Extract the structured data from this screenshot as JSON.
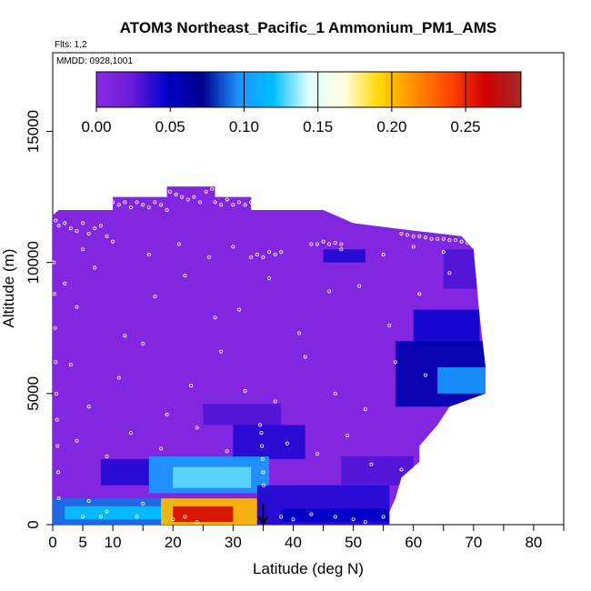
{
  "chart_data": {
    "type": "heatmap",
    "title": "ATOM3 Northeast_Pacific_1 Ammonium_PM1_AMS",
    "flights_label": "Flts: 1,2",
    "date_label": "MMDD: 0928,1001",
    "xlabel": "Latitude (deg N)",
    "ylabel": "Altitude (m)",
    "xlim": [
      0,
      85
    ],
    "ylim": [
      0,
      18000
    ],
    "x_ticks": [
      0,
      5,
      10,
      20,
      30,
      40,
      50,
      60,
      70,
      80
    ],
    "y_ticks": [
      0,
      5000,
      10000,
      15000
    ],
    "colorbar": {
      "min": 0.0,
      "max": 0.2875,
      "ticks": [
        0.0,
        0.05,
        0.1,
        0.15,
        0.2,
        0.25
      ],
      "tick_labels": [
        "0.00",
        "0.05",
        "0.10",
        "0.15",
        "0.20",
        "0.25"
      ],
      "colors": [
        "#8a2be2",
        "#6a1ad8",
        "#0000cd",
        "#00008b",
        "#1e90ff",
        "#00bfff",
        "#e0ffff",
        "#ffffe0",
        "#ffd700",
        "#ff8c00",
        "#ff4500",
        "#d00000",
        "#a52a2a"
      ]
    },
    "envelope": [
      [
        0,
        8000
      ],
      [
        0,
        11800
      ],
      [
        1,
        12000
      ],
      [
        10,
        12000
      ],
      [
        10,
        12500
      ],
      [
        19,
        12500
      ],
      [
        19,
        12900
      ],
      [
        27,
        12900
      ],
      [
        27,
        12500
      ],
      [
        33,
        12500
      ],
      [
        33,
        12000
      ],
      [
        45,
        12000
      ],
      [
        50,
        11500
      ],
      [
        57,
        11300
      ],
      [
        68,
        11000
      ],
      [
        70,
        10500
      ],
      [
        71,
        8000
      ],
      [
        72,
        6000
      ],
      [
        72,
        5000
      ],
      [
        66,
        4500
      ],
      [
        64,
        3800
      ],
      [
        61,
        3000
      ],
      [
        61,
        2400
      ],
      [
        58,
        1800
      ],
      [
        57,
        1000
      ],
      [
        56,
        500
      ],
      [
        56,
        0
      ],
      [
        0,
        0
      ]
    ],
    "background_value": 0.006,
    "features": [
      {
        "x": [
          65,
          71
        ],
        "y": [
          9000,
          10500
        ],
        "value": 0.03
      },
      {
        "x": [
          60,
          71
        ],
        "y": [
          6800,
          8200
        ],
        "value": 0.045
      },
      {
        "x": [
          57,
          72
        ],
        "y": [
          4500,
          7000
        ],
        "value": 0.06
      },
      {
        "x": [
          64,
          72
        ],
        "y": [
          5000,
          6000
        ],
        "value": 0.1
      },
      {
        "x": [
          45,
          52
        ],
        "y": [
          10000,
          10500
        ],
        "value": 0.04
      },
      {
        "x": [
          25,
          38
        ],
        "y": [
          3800,
          4600
        ],
        "value": 0.03
      },
      {
        "x": [
          30,
          42
        ],
        "y": [
          2500,
          3800
        ],
        "value": 0.04
      },
      {
        "x": [
          8,
          16
        ],
        "y": [
          1500,
          2500
        ],
        "value": 0.04
      },
      {
        "x": [
          16,
          36
        ],
        "y": [
          1200,
          2600
        ],
        "value": 0.1
      },
      {
        "x": [
          20,
          33
        ],
        "y": [
          1400,
          2200
        ],
        "value": 0.13
      },
      {
        "x": [
          0,
          20
        ],
        "y": [
          0,
          1000
        ],
        "value": 0.09
      },
      {
        "x": [
          2,
          18
        ],
        "y": [
          200,
          700
        ],
        "value": 0.12
      },
      {
        "x": [
          18,
          34
        ],
        "y": [
          0,
          1000
        ],
        "value": 0.2
      },
      {
        "x": [
          20,
          30
        ],
        "y": [
          100,
          700
        ],
        "value": 0.26
      },
      {
        "x": [
          34,
          56
        ],
        "y": [
          0,
          1500
        ],
        "value": 0.04
      },
      {
        "x": [
          38,
          56
        ],
        "y": [
          100,
          600
        ],
        "value": 0.05
      },
      {
        "x": [
          48,
          60
        ],
        "y": [
          1500,
          2600
        ],
        "value": 0.03
      }
    ],
    "flight_tracks": [
      {
        "x": [
          0.5,
          1,
          2,
          3,
          4,
          5,
          6,
          7,
          8,
          9
        ],
        "y": [
          11600,
          11400,
          11500,
          11300,
          11200,
          11500,
          11100,
          11300,
          11400,
          11000
        ]
      },
      {
        "x": [
          10,
          11,
          12,
          13,
          14,
          15,
          16,
          17,
          18,
          19
        ],
        "y": [
          12300,
          12200,
          12300,
          12100,
          12300,
          12200,
          12100,
          12300,
          12200,
          12000
        ]
      },
      {
        "x": [
          19.5,
          20.5,
          21.5,
          22.5,
          23.5,
          24.5,
          25.5,
          26.5
        ],
        "y": [
          12700,
          12600,
          12500,
          12400,
          12500,
          12300,
          12700,
          12800
        ]
      },
      {
        "x": [
          27,
          28,
          29,
          30,
          31,
          32,
          33
        ],
        "y": [
          12300,
          12200,
          12400,
          12200,
          12300,
          12200,
          12300
        ]
      },
      {
        "x": [
          33,
          34,
          35,
          36,
          37
        ],
        "y": [
          10200,
          10300,
          10200,
          10400,
          10300
        ]
      },
      {
        "x": [
          44,
          45,
          46,
          47,
          48
        ],
        "y": [
          10700,
          10800,
          10700,
          10750,
          10700
        ]
      },
      {
        "x": [
          58,
          59,
          60,
          61,
          62,
          63,
          64,
          65,
          66,
          67,
          68,
          69,
          70
        ],
        "y": [
          11100,
          11050,
          11000,
          11000,
          10950,
          10900,
          10900,
          10900,
          10850,
          10850,
          10800,
          10750,
          10700
        ]
      },
      {
        "x": [
          0.2,
          0.3,
          0.4,
          0.5,
          0.6,
          0.7,
          0.8,
          0.9,
          1.0
        ],
        "y": [
          10000,
          8800,
          7500,
          6200,
          5000,
          4000,
          3000,
          2000,
          1000
        ]
      },
      {
        "x": [
          34.5,
          34.7,
          34.8,
          34.9,
          35.0,
          35.1
        ],
        "y": [
          3800,
          3500,
          3000,
          2500,
          2000,
          1500
        ]
      },
      {
        "x": [
          5,
          6,
          8,
          9,
          14,
          15,
          20,
          22,
          24
        ],
        "y": [
          300,
          900,
          300,
          500,
          300,
          800,
          200,
          300,
          100
        ]
      },
      {
        "x": [
          38,
          40,
          43,
          47,
          50,
          52,
          55
        ],
        "y": [
          300,
          200,
          400,
          300,
          200,
          100,
          300
        ]
      },
      {
        "x": [
          2,
          4,
          7,
          12,
          17,
          22,
          27,
          31,
          36,
          41,
          46,
          51,
          56,
          61,
          66
        ],
        "y": [
          9200,
          8300,
          9800,
          7200,
          8700,
          9500,
          7900,
          8200,
          9400,
          7300,
          8900,
          9100,
          7600,
          8800,
          9600
        ]
      },
      {
        "x": [
          3,
          6,
          11,
          15,
          19,
          23,
          28,
          32,
          37,
          42,
          47,
          52,
          57,
          62
        ],
        "y": [
          6100,
          4500,
          5600,
          6900,
          4200,
          5300,
          6600,
          5100,
          4700,
          6400,
          5000,
          4400,
          6200,
          5700
        ]
      },
      {
        "x": [
          4,
          9,
          13,
          18,
          24,
          29,
          39,
          44,
          49,
          53,
          58
        ],
        "y": [
          3200,
          2600,
          3500,
          2900,
          3700,
          2800,
          3100,
          2700,
          3400,
          2300,
          2100
        ]
      },
      {
        "x": [
          5,
          10,
          16,
          21,
          26,
          30,
          38,
          43,
          48,
          55,
          60,
          65
        ],
        "y": [
          10500,
          10800,
          10300,
          10700,
          10200,
          10600,
          10400,
          10700,
          10500,
          10300,
          10600,
          10400
        ]
      }
    ],
    "arrow": {
      "x": 35,
      "y_start": 800,
      "y_end": 0
    }
  }
}
